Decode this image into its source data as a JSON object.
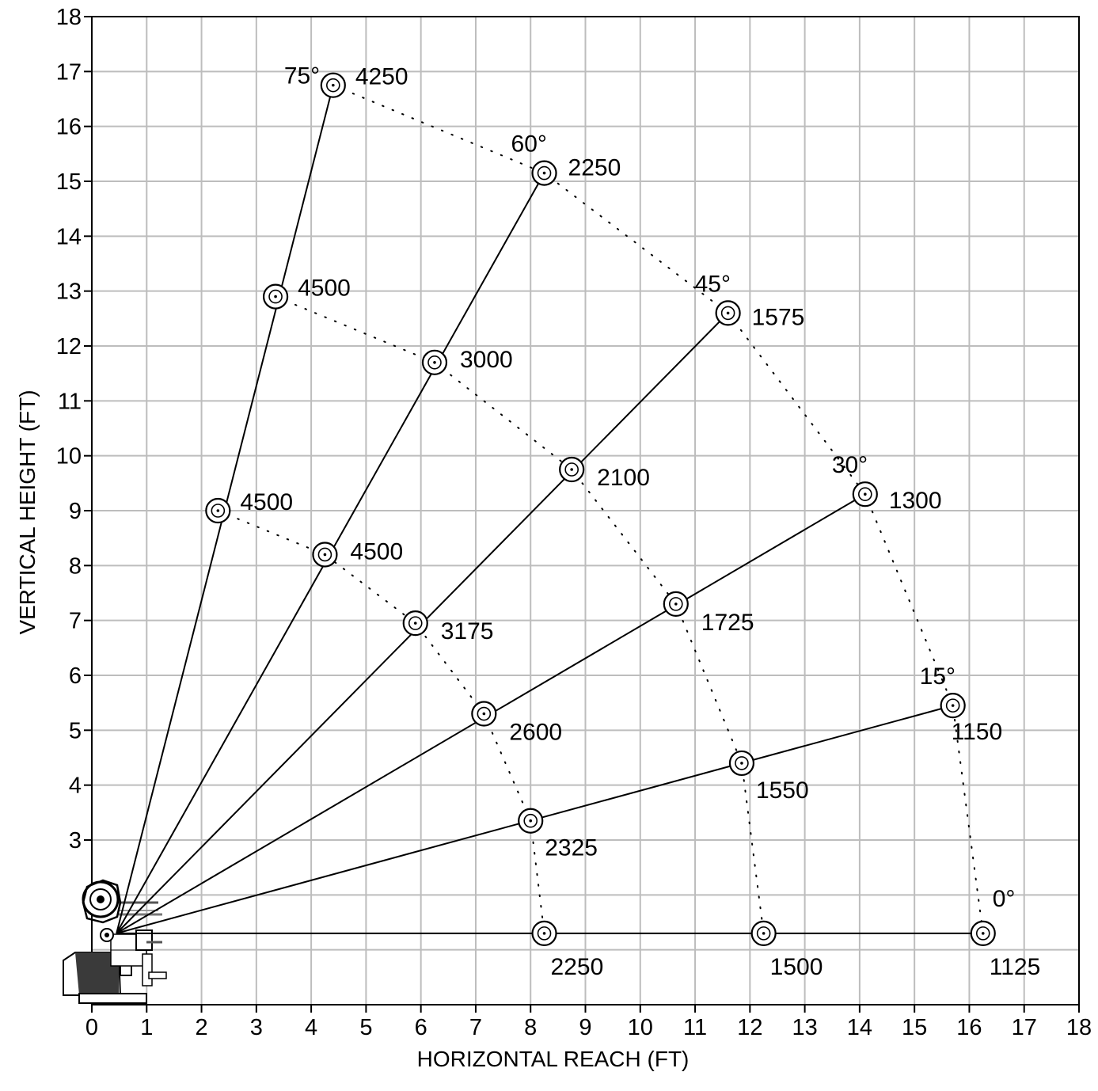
{
  "chart_data": {
    "type": "line",
    "title": "",
    "xlabel": "HORIZONTAL REACH (FT)",
    "ylabel": "VERTICAL HEIGHT (FT)",
    "xlim": [
      0,
      18
    ],
    "ylim": [
      0,
      18
    ],
    "x_ticks": [
      "0",
      "1",
      "2",
      "3",
      "4",
      "5",
      "6",
      "7",
      "8",
      "9",
      "10",
      "11",
      "12",
      "13",
      "14",
      "15",
      "16",
      "17",
      "18"
    ],
    "y_ticks": [
      "3",
      "4",
      "5",
      "6",
      "7",
      "8",
      "9",
      "10",
      "11",
      "12",
      "13",
      "14",
      "15",
      "16",
      "17",
      "18"
    ],
    "grid": true,
    "origin": [
      0.45,
      1.3
    ],
    "booms": [
      {
        "angle": "75°",
        "points": [
          {
            "x": 2.3,
            "y": 9.0,
            "capacity": "4500"
          },
          {
            "x": 3.35,
            "y": 12.9,
            "capacity": "4500"
          },
          {
            "x": 4.4,
            "y": 16.75,
            "capacity": "4250"
          }
        ]
      },
      {
        "angle": "60°",
        "points": [
          {
            "x": 4.25,
            "y": 8.2,
            "capacity": "4500"
          },
          {
            "x": 6.25,
            "y": 11.7,
            "capacity": "3000"
          },
          {
            "x": 8.25,
            "y": 15.15,
            "capacity": "2250"
          }
        ]
      },
      {
        "angle": "45°",
        "points": [
          {
            "x": 5.9,
            "y": 6.95,
            "capacity": "3175"
          },
          {
            "x": 8.75,
            "y": 9.75,
            "capacity": "2100"
          },
          {
            "x": 11.6,
            "y": 12.6,
            "capacity": "1575"
          }
        ]
      },
      {
        "angle": "30°",
        "points": [
          {
            "x": 7.15,
            "y": 5.3,
            "capacity": "2600"
          },
          {
            "x": 10.65,
            "y": 7.3,
            "capacity": "1725"
          },
          {
            "x": 14.1,
            "y": 9.3,
            "capacity": "1300"
          }
        ]
      },
      {
        "angle": "15°",
        "points": [
          {
            "x": 8.0,
            "y": 3.35,
            "capacity": "2325"
          },
          {
            "x": 11.85,
            "y": 4.4,
            "capacity": "1550"
          },
          {
            "x": 15.7,
            "y": 5.45,
            "capacity": "1150"
          }
        ]
      },
      {
        "angle": "0°",
        "points": [
          {
            "x": 8.25,
            "y": 1.3,
            "capacity": "2250"
          },
          {
            "x": 12.25,
            "y": 1.3,
            "capacity": "1500"
          },
          {
            "x": 16.25,
            "y": 1.3,
            "capacity": "1125"
          }
        ]
      }
    ]
  }
}
